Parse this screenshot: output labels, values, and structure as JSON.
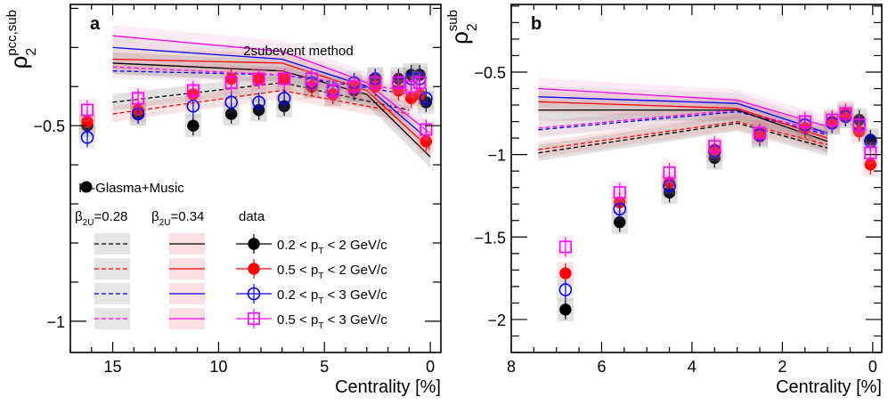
{
  "chart_data": [
    {
      "type": "scatter",
      "panel_label": "a",
      "annotation": "2subevent method",
      "ylabel_main": "ρ",
      "ylabel_sup": "pcc,sub",
      "ylabel_sub": "2",
      "xlabel": "Centrality [%]",
      "xlim": [
        17,
        -0.5
      ],
      "ylim": [
        -1.08,
        -0.19
      ],
      "xticks": [
        "15",
        "10",
        "5",
        "0"
      ],
      "xtick_values": [
        15,
        10,
        5,
        0
      ],
      "yticks": [
        "−0.5",
        "−1"
      ],
      "ytick_values": [
        -0.5,
        -1.0
      ],
      "legend": {
        "model_name": "IP-Glasma+Music",
        "col1": "β",
        "col1_sub": "2U",
        "col1_val": "=0.28",
        "col2": "β",
        "col2_sub": "2U",
        "col2_val": "=0.34",
        "col3": "data",
        "entries": [
          {
            "pre": "0.2 < p",
            "sub": "T",
            "post": " < 2 GeV/c"
          },
          {
            "pre": "0.5 < p",
            "sub": "T",
            "post": " < 2 GeV/c"
          },
          {
            "pre": "0.2 < p",
            "sub": "T",
            "post": " < 3 GeV/c"
          },
          {
            "pre": "0.5 < p",
            "sub": "T",
            "post": " < 3 GeV/c"
          }
        ]
      },
      "series": [
        {
          "name": "0.2 < pT < 2 GeV/c",
          "color": "#000000",
          "marker": "circle-filled",
          "x": [
            16.2,
            13.8,
            11.2,
            9.4,
            8.1,
            6.9,
            5.6,
            4.6,
            3.6,
            2.6,
            1.5,
            0.9,
            0.5,
            0.2
          ],
          "y": [
            -0.5,
            -0.47,
            -0.5,
            -0.47,
            -0.46,
            -0.45,
            -0.4,
            -0.42,
            -0.41,
            -0.38,
            -0.38,
            -0.37,
            -0.37,
            -0.44
          ]
        },
        {
          "name": "0.5 < pT < 2 GeV/c",
          "color": "#ff0000",
          "marker": "circle-filled",
          "x": [
            16.2,
            13.8,
            11.2,
            9.4,
            8.1,
            6.9,
            5.6,
            4.6,
            3.6,
            2.6,
            1.5,
            0.9,
            0.5,
            0.2
          ],
          "y": [
            -0.49,
            -0.46,
            -0.42,
            -0.38,
            -0.38,
            -0.38,
            -0.4,
            -0.42,
            -0.4,
            -0.4,
            -0.41,
            -0.43,
            -0.42,
            -0.54
          ]
        },
        {
          "name": "0.2 < pT < 3 GeV/c",
          "color": "#0000ff",
          "marker": "circle-open",
          "x": [
            16.2,
            13.8,
            11.2,
            9.4,
            8.1,
            6.9,
            5.6,
            4.6,
            3.6,
            2.6,
            1.5,
            0.9,
            0.5,
            0.2
          ],
          "y": [
            -0.53,
            -0.47,
            -0.45,
            -0.44,
            -0.44,
            -0.43,
            -0.39,
            -0.41,
            -0.39,
            -0.38,
            -0.39,
            -0.38,
            -0.38,
            -0.43
          ]
        },
        {
          "name": "0.5 < pT < 3 GeV/c",
          "color": "#ff00ff",
          "marker": "square-open",
          "x": [
            16.2,
            13.8,
            11.2,
            9.4,
            8.1,
            6.9,
            5.6,
            4.6,
            3.6,
            2.6,
            1.5,
            0.9,
            0.5,
            0.2
          ],
          "y": [
            -0.46,
            -0.43,
            -0.41,
            -0.39,
            -0.38,
            -0.38,
            -0.38,
            -0.41,
            -0.4,
            -0.39,
            -0.39,
            -0.4,
            -0.39,
            -0.51
          ]
        }
      ],
      "model_curves": [
        {
          "beta2U": 0.28,
          "color": "#000000",
          "dash": true,
          "x": [
            15,
            7,
            1
          ],
          "y": [
            -0.44,
            -0.39,
            -0.46
          ]
        },
        {
          "beta2U": 0.28,
          "color": "#ff0000",
          "dash": true,
          "x": [
            15,
            7,
            1
          ],
          "y": [
            -0.47,
            -0.41,
            -0.47
          ]
        },
        {
          "beta2U": 0.28,
          "color": "#0000ff",
          "dash": true,
          "x": [
            15,
            7,
            1
          ],
          "y": [
            -0.36,
            -0.37,
            -0.42
          ]
        },
        {
          "beta2U": 0.28,
          "color": "#ff00ff",
          "dash": true,
          "x": [
            15,
            7,
            1
          ],
          "y": [
            -0.35,
            -0.37,
            -0.41
          ]
        },
        {
          "beta2U": 0.34,
          "color": "#000000",
          "dash": false,
          "x": [
            15,
            7,
            3,
            0
          ],
          "y": [
            -0.34,
            -0.36,
            -0.42,
            -0.58
          ]
        },
        {
          "beta2U": 0.34,
          "color": "#ff0000",
          "dash": false,
          "x": [
            15,
            7,
            3,
            0
          ],
          "y": [
            -0.33,
            -0.34,
            -0.41,
            -0.56
          ]
        },
        {
          "beta2U": 0.34,
          "color": "#0000ff",
          "dash": false,
          "x": [
            15,
            7,
            3,
            0
          ],
          "y": [
            -0.3,
            -0.33,
            -0.4,
            -0.54
          ]
        },
        {
          "beta2U": 0.34,
          "color": "#ff00ff",
          "dash": false,
          "x": [
            15,
            7,
            3,
            0
          ],
          "y": [
            -0.27,
            -0.31,
            -0.39,
            -0.52
          ]
        }
      ]
    },
    {
      "type": "scatter",
      "panel_label": "b",
      "ylabel_main": "ρ",
      "ylabel_sup": "sub",
      "ylabel_sub": "2",
      "xlabel": "Centrality [%]",
      "xlim": [
        8,
        -0.2
      ],
      "ylim": [
        -2.2,
        -0.09
      ],
      "xticks": [
        "8",
        "6",
        "4",
        "2",
        "0"
      ],
      "xtick_values": [
        8,
        6,
        4,
        2,
        0
      ],
      "yticks": [
        "−0.5",
        "−1",
        "−1.5",
        "−2"
      ],
      "ytick_values": [
        -0.5,
        -1.0,
        -1.5,
        -2.0
      ],
      "series": [
        {
          "name": "0.2 < pT < 2 GeV/c",
          "color": "#000000",
          "marker": "circle-filled",
          "x": [
            6.8,
            5.6,
            4.5,
            3.5,
            2.5,
            1.5,
            0.9,
            0.6,
            0.3,
            0.05
          ],
          "y": [
            -1.94,
            -1.41,
            -1.23,
            -1.02,
            -0.89,
            -0.84,
            -0.81,
            -0.77,
            -0.79,
            -0.91
          ]
        },
        {
          "name": "0.5 < pT < 2 GeV/c",
          "color": "#ff0000",
          "marker": "circle-filled",
          "x": [
            6.8,
            5.6,
            4.5,
            3.5,
            2.5,
            1.5,
            0.9,
            0.6,
            0.3,
            0.05
          ],
          "y": [
            -1.72,
            -1.29,
            -1.17,
            -0.97,
            -0.87,
            -0.84,
            -0.8,
            -0.75,
            -0.86,
            -1.06
          ]
        },
        {
          "name": "0.2 < pT < 3 GeV/c",
          "color": "#0000ff",
          "marker": "circle-open",
          "x": [
            6.8,
            5.6,
            4.5,
            3.5,
            2.5,
            1.5,
            0.9,
            0.6,
            0.3,
            0.05
          ],
          "y": [
            -1.82,
            -1.33,
            -1.19,
            -0.98,
            -0.88,
            -0.82,
            -0.81,
            -0.77,
            -0.82,
            -0.92
          ]
        },
        {
          "name": "0.5 < pT < 3 GeV/c",
          "color": "#ff00ff",
          "marker": "square-open",
          "x": [
            6.8,
            5.6,
            4.5,
            3.5,
            2.5,
            1.5,
            0.9,
            0.6,
            0.3,
            0.05
          ],
          "y": [
            -1.56,
            -1.23,
            -1.11,
            -0.95,
            -0.87,
            -0.8,
            -0.79,
            -0.75,
            -0.82,
            -0.99
          ]
        }
      ],
      "model_curves": [
        {
          "beta2U": 0.28,
          "color": "#000000",
          "dash": true,
          "x": [
            7.4,
            3,
            1
          ],
          "y": [
            -0.99,
            -0.81,
            -0.96
          ]
        },
        {
          "beta2U": 0.28,
          "color": "#ff0000",
          "dash": true,
          "x": [
            7.4,
            3,
            1
          ],
          "y": [
            -0.97,
            -0.8,
            -0.94
          ]
        },
        {
          "beta2U": 0.28,
          "color": "#0000ff",
          "dash": true,
          "x": [
            7.4,
            3,
            1
          ],
          "y": [
            -0.85,
            -0.74,
            -0.88
          ]
        },
        {
          "beta2U": 0.28,
          "color": "#ff00ff",
          "dash": true,
          "x": [
            7.4,
            3,
            1
          ],
          "y": [
            -0.84,
            -0.73,
            -0.87
          ]
        },
        {
          "beta2U": 0.34,
          "color": "#000000",
          "dash": false,
          "x": [
            7.4,
            3,
            1
          ],
          "y": [
            -0.73,
            -0.73,
            -0.92
          ]
        },
        {
          "beta2U": 0.34,
          "color": "#ff0000",
          "dash": false,
          "x": [
            7.4,
            3,
            1
          ],
          "y": [
            -0.68,
            -0.72,
            -0.9
          ]
        },
        {
          "beta2U": 0.34,
          "color": "#0000ff",
          "dash": false,
          "x": [
            7.4,
            3,
            1
          ],
          "y": [
            -0.65,
            -0.69,
            -0.87
          ]
        },
        {
          "beta2U": 0.34,
          "color": "#ff00ff",
          "dash": false,
          "x": [
            7.4,
            3,
            1
          ],
          "y": [
            -0.6,
            -0.67,
            -0.83
          ]
        }
      ]
    }
  ]
}
